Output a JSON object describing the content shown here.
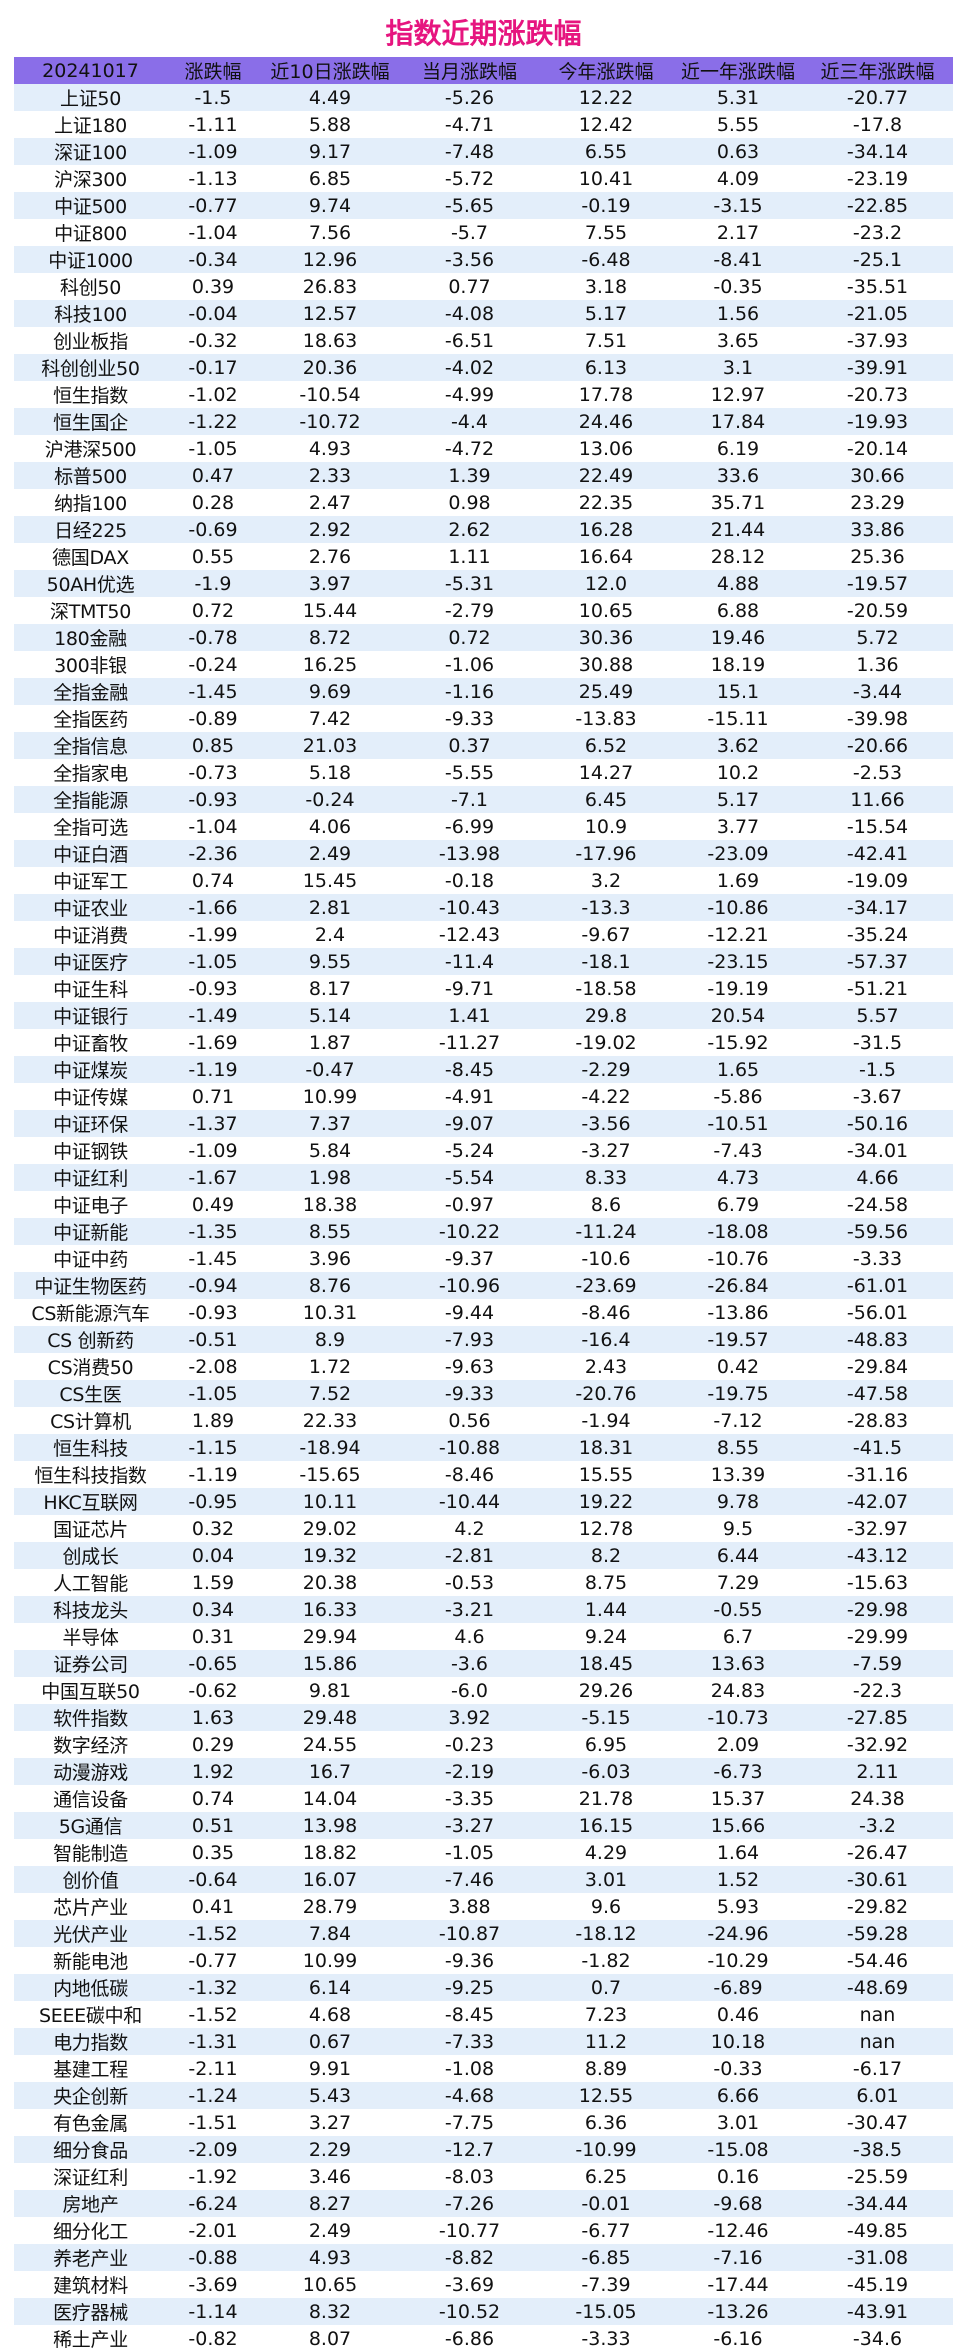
{
  "title": "指数近期涨跌幅",
  "header_color": "#8a6ee8",
  "title_color": "#e6157f",
  "row_stripe_color": "#e3eefa",
  "columns": [
    "20241017",
    "涨跌幅",
    "近10日涨跌幅",
    "当月涨跌幅",
    "今年涨跌幅",
    "近一年涨跌幅",
    "近三年涨跌幅"
  ],
  "rows": [
    [
      "上证50",
      "-1.5",
      "4.49",
      "-5.26",
      "12.22",
      "5.31",
      "-20.77"
    ],
    [
      "上证180",
      "-1.11",
      "5.88",
      "-4.71",
      "12.42",
      "5.55",
      "-17.8"
    ],
    [
      "深证100",
      "-1.09",
      "9.17",
      "-7.48",
      "6.55",
      "0.63",
      "-34.14"
    ],
    [
      "沪深300",
      "-1.13",
      "6.85",
      "-5.72",
      "10.41",
      "4.09",
      "-23.19"
    ],
    [
      "中证500",
      "-0.77",
      "9.74",
      "-5.65",
      "-0.19",
      "-3.15",
      "-22.85"
    ],
    [
      "中证800",
      "-1.04",
      "7.56",
      "-5.7",
      "7.55",
      "2.17",
      "-23.2"
    ],
    [
      "中证1000",
      "-0.34",
      "12.96",
      "-3.56",
      "-6.48",
      "-8.41",
      "-25.1"
    ],
    [
      "科创50",
      "0.39",
      "26.83",
      "0.77",
      "3.18",
      "-0.35",
      "-35.51"
    ],
    [
      "科技100",
      "-0.04",
      "12.57",
      "-4.08",
      "5.17",
      "1.56",
      "-21.05"
    ],
    [
      "创业板指",
      "-0.32",
      "18.63",
      "-6.51",
      "7.51",
      "3.65",
      "-37.93"
    ],
    [
      "科创创业50",
      "-0.17",
      "20.36",
      "-4.02",
      "6.13",
      "3.1",
      "-39.91"
    ],
    [
      "恒生指数",
      "-1.02",
      "-10.54",
      "-4.99",
      "17.78",
      "12.97",
      "-20.73"
    ],
    [
      "恒生国企",
      "-1.22",
      "-10.72",
      "-4.4",
      "24.46",
      "17.84",
      "-19.93"
    ],
    [
      "沪港深500",
      "-1.05",
      "4.93",
      "-4.72",
      "13.06",
      "6.19",
      "-20.14"
    ],
    [
      "标普500",
      "0.47",
      "2.33",
      "1.39",
      "22.49",
      "33.6",
      "30.66"
    ],
    [
      "纳指100",
      "0.28",
      "2.47",
      "0.98",
      "22.35",
      "35.71",
      "23.29"
    ],
    [
      "日经225",
      "-0.69",
      "2.92",
      "2.62",
      "16.28",
      "21.44",
      "33.86"
    ],
    [
      "德国DAX",
      "0.55",
      "2.76",
      "1.11",
      "16.64",
      "28.12",
      "25.36"
    ],
    [
      "50AH优选",
      "-1.9",
      "3.97",
      "-5.31",
      "12.0",
      "4.88",
      "-19.57"
    ],
    [
      "深TMT50",
      "0.72",
      "15.44",
      "-2.79",
      "10.65",
      "6.88",
      "-20.59"
    ],
    [
      "180金融",
      "-0.78",
      "8.72",
      "0.72",
      "30.36",
      "19.46",
      "5.72"
    ],
    [
      "300非银",
      "-0.24",
      "16.25",
      "-1.06",
      "30.88",
      "18.19",
      "1.36"
    ],
    [
      "全指金融",
      "-1.45",
      "9.69",
      "-1.16",
      "25.49",
      "15.1",
      "-3.44"
    ],
    [
      "全指医药",
      "-0.89",
      "7.42",
      "-9.33",
      "-13.83",
      "-15.11",
      "-39.98"
    ],
    [
      "全指信息",
      "0.85",
      "21.03",
      "0.37",
      "6.52",
      "3.62",
      "-20.66"
    ],
    [
      "全指家电",
      "-0.73",
      "5.18",
      "-5.55",
      "14.27",
      "10.2",
      "-2.53"
    ],
    [
      "全指能源",
      "-0.93",
      "-0.24",
      "-7.1",
      "6.45",
      "5.17",
      "11.66"
    ],
    [
      "全指可选",
      "-1.04",
      "4.06",
      "-6.99",
      "10.9",
      "3.77",
      "-15.54"
    ],
    [
      "中证白酒",
      "-2.36",
      "2.49",
      "-13.98",
      "-17.96",
      "-23.09",
      "-42.41"
    ],
    [
      "中证军工",
      "0.74",
      "15.45",
      "-0.18",
      "3.2",
      "1.69",
      "-19.09"
    ],
    [
      "中证农业",
      "-1.66",
      "2.81",
      "-10.43",
      "-13.3",
      "-10.86",
      "-34.17"
    ],
    [
      "中证消费",
      "-1.99",
      "2.4",
      "-12.43",
      "-9.67",
      "-12.21",
      "-35.24"
    ],
    [
      "中证医疗",
      "-1.05",
      "9.55",
      "-11.4",
      "-18.1",
      "-23.15",
      "-57.37"
    ],
    [
      "中证生科",
      "-0.93",
      "8.17",
      "-9.71",
      "-18.58",
      "-19.19",
      "-51.21"
    ],
    [
      "中证银行",
      "-1.49",
      "5.14",
      "1.41",
      "29.8",
      "20.54",
      "5.57"
    ],
    [
      "中证畜牧",
      "-1.69",
      "1.87",
      "-11.27",
      "-19.02",
      "-15.92",
      "-31.5"
    ],
    [
      "中证煤炭",
      "-1.19",
      "-0.47",
      "-8.45",
      "-2.29",
      "1.65",
      "-1.5"
    ],
    [
      "中证传媒",
      "0.71",
      "10.99",
      "-4.91",
      "-4.22",
      "-5.86",
      "-3.67"
    ],
    [
      "中证环保",
      "-1.37",
      "7.37",
      "-9.07",
      "-3.56",
      "-10.51",
      "-50.16"
    ],
    [
      "中证钢铁",
      "-1.09",
      "5.84",
      "-5.24",
      "-3.27",
      "-7.43",
      "-34.01"
    ],
    [
      "中证红利",
      "-1.67",
      "1.98",
      "-5.54",
      "8.33",
      "4.73",
      "4.66"
    ],
    [
      "中证电子",
      "0.49",
      "18.38",
      "-0.97",
      "8.6",
      "6.79",
      "-24.58"
    ],
    [
      "中证新能",
      "-1.35",
      "8.55",
      "-10.22",
      "-11.24",
      "-18.08",
      "-59.56"
    ],
    [
      "中证中药",
      "-1.45",
      "3.96",
      "-9.37",
      "-10.6",
      "-10.76",
      "-3.33"
    ],
    [
      "中证生物医药",
      "-0.94",
      "8.76",
      "-10.96",
      "-23.69",
      "-26.84",
      "-61.01"
    ],
    [
      "CS新能源汽车",
      "-0.93",
      "10.31",
      "-9.44",
      "-8.46",
      "-13.86",
      "-56.01"
    ],
    [
      "CS 创新药",
      "-0.51",
      "8.9",
      "-7.93",
      "-16.4",
      "-19.57",
      "-48.83"
    ],
    [
      "CS消费50",
      "-2.08",
      "1.72",
      "-9.63",
      "2.43",
      "0.42",
      "-29.84"
    ],
    [
      "CS生医",
      "-1.05",
      "7.52",
      "-9.33",
      "-20.76",
      "-19.75",
      "-47.58"
    ],
    [
      "CS计算机",
      "1.89",
      "22.33",
      "0.56",
      "-1.94",
      "-7.12",
      "-28.83"
    ],
    [
      "恒生科技",
      "-1.15",
      "-18.94",
      "-10.88",
      "18.31",
      "8.55",
      "-41.5"
    ],
    [
      "恒生科技指数",
      "-1.19",
      "-15.65",
      "-8.46",
      "15.55",
      "13.39",
      "-31.16"
    ],
    [
      "HKC互联网",
      "-0.95",
      "10.11",
      "-10.44",
      "19.22",
      "9.78",
      "-42.07"
    ],
    [
      "国证芯片",
      "0.32",
      "29.02",
      "4.2",
      "12.78",
      "9.5",
      "-32.97"
    ],
    [
      "创成长",
      "0.04",
      "19.32",
      "-2.81",
      "8.2",
      "6.44",
      "-43.12"
    ],
    [
      "人工智能",
      "1.59",
      "20.38",
      "-0.53",
      "8.75",
      "7.29",
      "-15.63"
    ],
    [
      "科技龙头",
      "0.34",
      "16.33",
      "-3.21",
      "1.44",
      "-0.55",
      "-29.98"
    ],
    [
      "半导体",
      "0.31",
      "29.94",
      "4.6",
      "9.24",
      "6.7",
      "-29.99"
    ],
    [
      "证券公司",
      "-0.65",
      "15.86",
      "-3.6",
      "18.45",
      "13.63",
      "-7.59"
    ],
    [
      "中国互联50",
      "-0.62",
      "9.81",
      "-6.0",
      "29.26",
      "24.83",
      "-22.3"
    ],
    [
      "软件指数",
      "1.63",
      "29.48",
      "3.92",
      "-5.15",
      "-10.73",
      "-27.85"
    ],
    [
      "数字经济",
      "0.29",
      "24.55",
      "-0.23",
      "6.95",
      "2.09",
      "-32.92"
    ],
    [
      "动漫游戏",
      "1.92",
      "16.7",
      "-2.19",
      "-6.03",
      "-6.73",
      "2.11"
    ],
    [
      "通信设备",
      "0.74",
      "14.04",
      "-3.35",
      "21.78",
      "15.37",
      "24.38"
    ],
    [
      "5G通信",
      "0.51",
      "13.98",
      "-3.27",
      "16.15",
      "15.66",
      "-3.2"
    ],
    [
      "智能制造",
      "0.35",
      "18.82",
      "-1.05",
      "4.29",
      "1.64",
      "-26.47"
    ],
    [
      "创价值",
      "-0.64",
      "16.07",
      "-7.46",
      "3.01",
      "1.52",
      "-30.61"
    ],
    [
      "芯片产业",
      "0.41",
      "28.79",
      "3.88",
      "9.6",
      "5.93",
      "-29.82"
    ],
    [
      "光伏产业",
      "-1.52",
      "7.84",
      "-10.87",
      "-18.12",
      "-24.96",
      "-59.28"
    ],
    [
      "新能电池",
      "-0.77",
      "10.99",
      "-9.36",
      "-1.82",
      "-10.29",
      "-54.46"
    ],
    [
      "内地低碳",
      "-1.32",
      "6.14",
      "-9.25",
      "0.7",
      "-6.89",
      "-48.69"
    ],
    [
      "SEEE碳中和",
      "-1.52",
      "4.68",
      "-8.45",
      "7.23",
      "0.46",
      "nan"
    ],
    [
      "电力指数",
      "-1.31",
      "0.67",
      "-7.33",
      "11.2",
      "10.18",
      "nan"
    ],
    [
      "基建工程",
      "-2.11",
      "9.91",
      "-1.08",
      "8.89",
      "-0.33",
      "-6.17"
    ],
    [
      "央企创新",
      "-1.24",
      "5.43",
      "-4.68",
      "12.55",
      "6.66",
      "6.01"
    ],
    [
      "有色金属",
      "-1.51",
      "3.27",
      "-7.75",
      "6.36",
      "3.01",
      "-30.47"
    ],
    [
      "细分食品",
      "-2.09",
      "2.29",
      "-12.7",
      "-10.99",
      "-15.08",
      "-38.5"
    ],
    [
      "深证红利",
      "-1.92",
      "3.46",
      "-8.03",
      "6.25",
      "0.16",
      "-25.59"
    ],
    [
      "房地产",
      "-6.24",
      "8.27",
      "-7.26",
      "-0.01",
      "-9.68",
      "-34.44"
    ],
    [
      "细分化工",
      "-2.01",
      "2.49",
      "-10.77",
      "-6.77",
      "-12.46",
      "-49.85"
    ],
    [
      "养老产业",
      "-0.88",
      "4.93",
      "-8.82",
      "-6.85",
      "-7.16",
      "-31.08"
    ],
    [
      "建筑材料",
      "-3.69",
      "10.65",
      "-3.69",
      "-7.39",
      "-17.44",
      "-45.19"
    ],
    [
      "医疗器械",
      "-1.14",
      "8.32",
      "-10.52",
      "-15.05",
      "-13.26",
      "-43.91"
    ],
    [
      "稀土产业",
      "-0.82",
      "8.07",
      "-6.86",
      "-3.33",
      "-6.16",
      "-34.6"
    ]
  ]
}
